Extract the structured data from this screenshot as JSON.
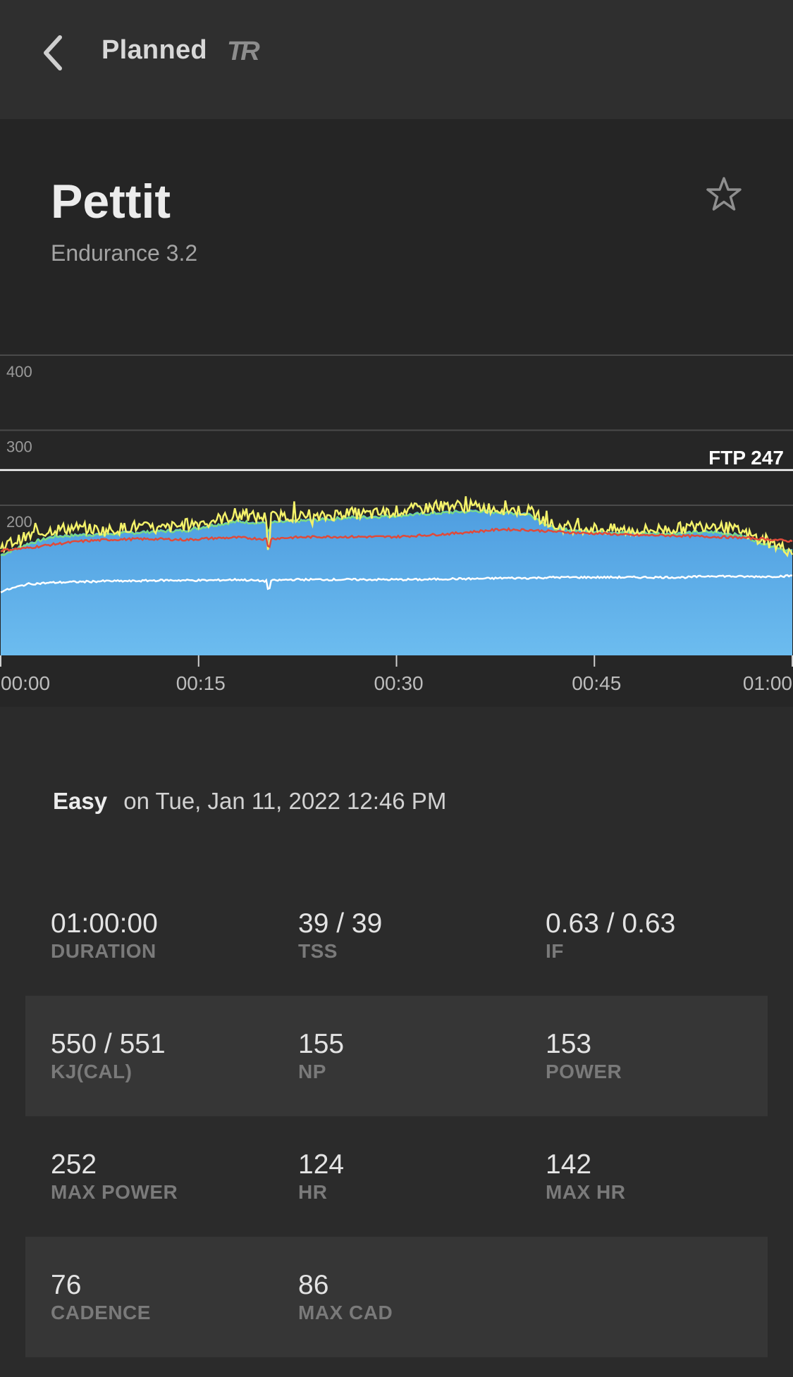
{
  "topbar": {
    "title": "Planned",
    "logo": "TR",
    "back_icon": "chevron-left-icon"
  },
  "workout": {
    "name": "Pettit",
    "subtitle": "Endurance 3.2",
    "favorite_icon": "star-outline-icon"
  },
  "chart_data": {
    "type": "area",
    "title": "",
    "xlabel": "",
    "ylabel": "",
    "y_ticks": [
      "400",
      "300",
      "200"
    ],
    "x_ticks": [
      "00:00",
      "00:15",
      "00:30",
      "00:45",
      "01:00"
    ],
    "ylim": [
      0,
      400
    ],
    "ftp_label": "FTP 247",
    "ftp": 247,
    "x_minutes": [
      0,
      2,
      4,
      6,
      8,
      10,
      12,
      14,
      16,
      18,
      20,
      22,
      24,
      26,
      28,
      30,
      32,
      34,
      36,
      38,
      40,
      42,
      44,
      46,
      48,
      50,
      52,
      54,
      56,
      58,
      60
    ],
    "series": [
      {
        "color": "#5aa8e6",
        "values": [
          135,
          150,
          160,
          162,
          163,
          165,
          167,
          168,
          175,
          180,
          178,
          180,
          182,
          185,
          186,
          188,
          190,
          192,
          194,
          192,
          190,
          170,
          168,
          166,
          165,
          164,
          165,
          166,
          162,
          150,
          140
        ]
      },
      {
        "color": "#f4f26a",
        "values": [
          145,
          158,
          168,
          170,
          166,
          172,
          168,
          174,
          180,
          186,
          184,
          186,
          183,
          190,
          188,
          192,
          196,
          200,
          198,
          195,
          192,
          172,
          170,
          168,
          166,
          168,
          170,
          175,
          165,
          152,
          138
        ]
      },
      {
        "color": "#e04a3a",
        "values": [
          140,
          143,
          148,
          152,
          154,
          155,
          155,
          154,
          156,
          157,
          155,
          157,
          158,
          158,
          158,
          158,
          160,
          162,
          165,
          168,
          167,
          165,
          163,
          162,
          160,
          160,
          159,
          158,
          157,
          155,
          152
        ]
      },
      {
        "color": "#ffffff",
        "values": [
          85,
          95,
          97,
          98,
          99,
          99,
          100,
          100,
          100,
          101,
          99,
          101,
          101,
          101,
          101,
          101,
          101,
          102,
          102,
          103,
          103,
          104,
          104,
          104,
          104,
          104,
          104,
          106,
          105,
          105,
          106
        ]
      }
    ],
    "colors": {
      "axis": "#6a6a6a",
      "ftp_line": "#ffffff"
    }
  },
  "summary": {
    "difficulty": "Easy",
    "datetime": "on Tue, Jan 11, 2022 12:46 PM"
  },
  "stats": [
    [
      {
        "value": "01:00:00",
        "label": "DURATION"
      },
      {
        "value": "39 / 39",
        "label": "TSS"
      },
      {
        "value": "0.63 / 0.63",
        "label": "IF"
      }
    ],
    [
      {
        "value": "550 / 551",
        "label": "KJ(CAL)"
      },
      {
        "value": "155",
        "label": "NP"
      },
      {
        "value": "153",
        "label": "POWER"
      }
    ],
    [
      {
        "value": "252",
        "label": "MAX POWER"
      },
      {
        "value": "124",
        "label": "HR"
      },
      {
        "value": "142",
        "label": "MAX HR"
      }
    ],
    [
      {
        "value": "76",
        "label": "CADENCE"
      },
      {
        "value": "86",
        "label": "MAX CAD"
      }
    ]
  ]
}
